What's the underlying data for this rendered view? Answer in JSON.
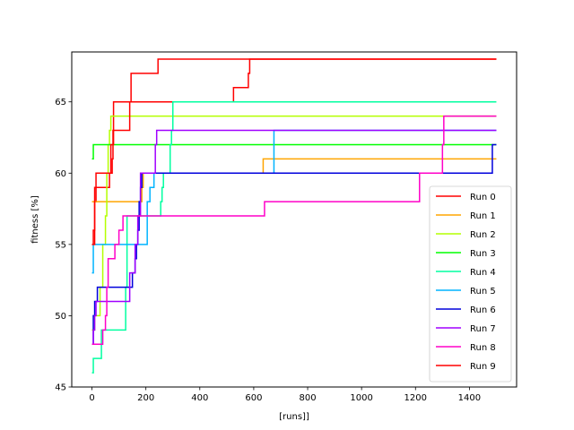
{
  "chart_data": {
    "type": "line",
    "xlabel": "[runs]]",
    "ylabel": "fitness [%]",
    "xlim": [
      -75,
      1575
    ],
    "ylim": [
      45,
      68.5
    ],
    "xticks": [
      0,
      200,
      400,
      600,
      800,
      1000,
      1200,
      1400
    ],
    "yticks": [
      45,
      50,
      55,
      60,
      65
    ],
    "grid": false,
    "legend_position": "lower-right",
    "series": [
      {
        "name": "Run 0",
        "color": "#ff0000",
        "points": [
          [
            0,
            55
          ],
          [
            5,
            56
          ],
          [
            10,
            58
          ],
          [
            15,
            59
          ],
          [
            50,
            59
          ],
          [
            65,
            60
          ],
          [
            75,
            61
          ],
          [
            78,
            63
          ],
          [
            80,
            65
          ],
          [
            140,
            65
          ],
          [
            520,
            65
          ],
          [
            525,
            66
          ],
          [
            575,
            66
          ],
          [
            580,
            67
          ],
          [
            585,
            68
          ],
          [
            1500,
            68
          ]
        ]
      },
      {
        "name": "Run 1",
        "color": "#ffa500",
        "points": [
          [
            0,
            58
          ],
          [
            180,
            58
          ],
          [
            185,
            59
          ],
          [
            190,
            60
          ],
          [
            630,
            60
          ],
          [
            635,
            61
          ],
          [
            1500,
            61
          ]
        ]
      },
      {
        "name": "Run 2",
        "color": "#b4ff00",
        "points": [
          [
            0,
            49
          ],
          [
            10,
            50
          ],
          [
            20,
            50
          ],
          [
            30,
            52
          ],
          [
            40,
            55
          ],
          [
            50,
            57
          ],
          [
            55,
            60
          ],
          [
            60,
            62
          ],
          [
            65,
            63
          ],
          [
            70,
            64
          ],
          [
            1500,
            64
          ]
        ]
      },
      {
        "name": "Run 3",
        "color": "#00ff00",
        "points": [
          [
            0,
            61
          ],
          [
            5,
            62
          ],
          [
            1500,
            62
          ]
        ]
      },
      {
        "name": "Run 4",
        "color": "#00ffa0",
        "points": [
          [
            0,
            46
          ],
          [
            5,
            47
          ],
          [
            30,
            47
          ],
          [
            35,
            49
          ],
          [
            120,
            49
          ],
          [
            125,
            52
          ],
          [
            130,
            57
          ],
          [
            250,
            57
          ],
          [
            255,
            58
          ],
          [
            260,
            59
          ],
          [
            265,
            60
          ],
          [
            285,
            60
          ],
          [
            290,
            62
          ],
          [
            295,
            63
          ],
          [
            300,
            65
          ],
          [
            1500,
            65
          ]
        ]
      },
      {
        "name": "Run 5",
        "color": "#00b4ff",
        "points": [
          [
            0,
            53
          ],
          [
            5,
            55
          ],
          [
            200,
            55
          ],
          [
            205,
            58
          ],
          [
            215,
            59
          ],
          [
            225,
            59
          ],
          [
            230,
            60
          ],
          [
            670,
            60
          ],
          [
            675,
            63
          ],
          [
            1500,
            63
          ]
        ]
      },
      {
        "name": "Run 6",
        "color": "#0000dc",
        "points": [
          [
            0,
            48
          ],
          [
            5,
            50
          ],
          [
            10,
            51
          ],
          [
            20,
            52
          ],
          [
            145,
            52
          ],
          [
            150,
            53
          ],
          [
            160,
            54
          ],
          [
            165,
            55
          ],
          [
            170,
            56
          ],
          [
            175,
            58
          ],
          [
            180,
            59
          ],
          [
            185,
            60
          ],
          [
            1480,
            60
          ],
          [
            1485,
            62
          ],
          [
            1500,
            62
          ]
        ]
      },
      {
        "name": "Run 7",
        "color": "#a000ff",
        "points": [
          [
            0,
            48
          ],
          [
            5,
            49
          ],
          [
            10,
            50
          ],
          [
            15,
            51
          ],
          [
            135,
            51
          ],
          [
            140,
            53
          ],
          [
            150,
            53
          ],
          [
            160,
            55
          ],
          [
            170,
            57
          ],
          [
            180,
            60
          ],
          [
            230,
            60
          ],
          [
            235,
            62
          ],
          [
            240,
            63
          ],
          [
            1500,
            63
          ]
        ]
      },
      {
        "name": "Run 8",
        "color": "#ff00c8",
        "points": [
          [
            0,
            48
          ],
          [
            35,
            48
          ],
          [
            40,
            49
          ],
          [
            50,
            50
          ],
          [
            55,
            52
          ],
          [
            60,
            54
          ],
          [
            80,
            54
          ],
          [
            85,
            55
          ],
          [
            100,
            56
          ],
          [
            110,
            56
          ],
          [
            115,
            57
          ],
          [
            635,
            57
          ],
          [
            640,
            58
          ],
          [
            1210,
            58
          ],
          [
            1215,
            60
          ],
          [
            1295,
            60
          ],
          [
            1300,
            62
          ],
          [
            1305,
            64
          ],
          [
            1500,
            64
          ]
        ]
      },
      {
        "name": "Run 9",
        "color": "#ff0000",
        "points": [
          [
            0,
            55
          ],
          [
            10,
            59
          ],
          [
            15,
            60
          ],
          [
            65,
            60
          ],
          [
            70,
            62
          ],
          [
            75,
            62
          ],
          [
            80,
            63
          ],
          [
            130,
            63
          ],
          [
            140,
            65
          ],
          [
            145,
            67
          ],
          [
            240,
            67
          ],
          [
            245,
            68
          ],
          [
            1500,
            68
          ]
        ]
      }
    ]
  }
}
